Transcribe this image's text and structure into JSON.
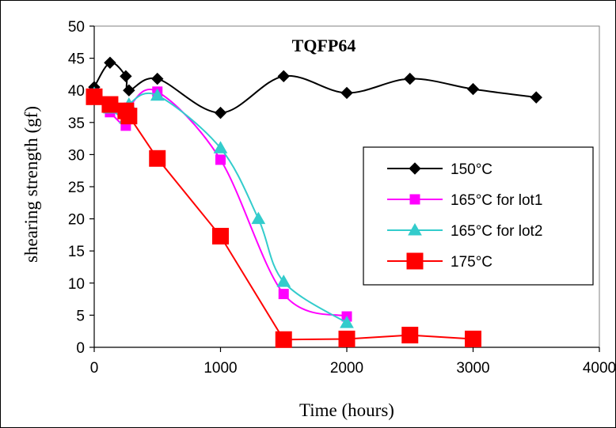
{
  "chart_data": {
    "type": "line",
    "title": "TQFP64",
    "xlabel": "Time (hours)",
    "ylabel": "shearing strength (gf)",
    "xlim": [
      0,
      4000
    ],
    "ylim": [
      0,
      50
    ],
    "xticks": [
      0,
      1000,
      2000,
      3000,
      4000
    ],
    "yticks": [
      0,
      5,
      10,
      15,
      20,
      25,
      30,
      35,
      40,
      45,
      50
    ],
    "grid": false,
    "legend_position": "right",
    "series": [
      {
        "name": "150°C",
        "color": "#000000",
        "marker": "diamond",
        "x": [
          0,
          125,
          250,
          275,
          500,
          1000,
          1500,
          2000,
          2500,
          3000,
          3500
        ],
        "y": [
          40.5,
          44.3,
          42.2,
          40.0,
          41.8,
          36.5,
          42.2,
          39.6,
          41.8,
          40.2,
          38.9
        ]
      },
      {
        "name": "165°C for lot1",
        "color": "#ff00ff",
        "marker": "square",
        "x": [
          0,
          125,
          250,
          275,
          500,
          1000,
          1500,
          2000
        ],
        "y": [
          39.5,
          36.6,
          34.5,
          37.3,
          39.8,
          29.2,
          8.3,
          4.8
        ]
      },
      {
        "name": "165°C for lot2",
        "color": "#33cccc",
        "marker": "triangle",
        "x": [
          0,
          125,
          250,
          275,
          500,
          1000,
          1300,
          1500,
          2000
        ],
        "y": [
          39.5,
          37.2,
          35.6,
          37.8,
          39.2,
          31.0,
          20.0,
          10.2,
          3.8
        ]
      },
      {
        "name": "175°C",
        "color": "#ff0000",
        "marker": "bigsquare",
        "x": [
          0,
          125,
          250,
          275,
          500,
          1000,
          1500,
          2000,
          2500,
          3000
        ],
        "y": [
          39.0,
          37.8,
          36.8,
          36.0,
          29.4,
          17.3,
          1.2,
          1.3,
          1.9,
          1.3
        ]
      }
    ]
  }
}
